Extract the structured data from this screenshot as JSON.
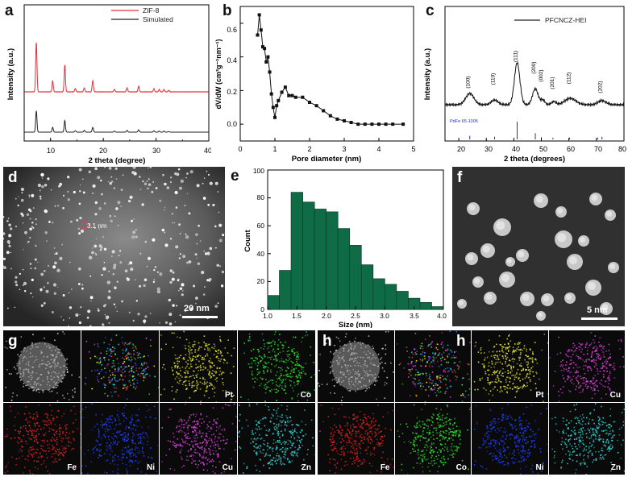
{
  "panel_labels": {
    "a": "a",
    "b": "b",
    "c": "c",
    "d": "d",
    "e": "e",
    "f": "f",
    "g": "g",
    "h": "h",
    "h2": "h"
  },
  "panel_a": {
    "legend": [
      "ZIF-8",
      "Simulated"
    ],
    "xlabel": "2 theta (degree)",
    "ylabel": "Intensity (a.u.)",
    "xticks": [
      "10",
      "20",
      "30",
      "40"
    ],
    "colors": {
      "zif8": "#e0303a",
      "simulated": "#222222"
    }
  },
  "panel_b": {
    "xlabel": "Pore diameter (nm)",
    "ylabel": "dV/dW (cm³g⁻¹nm⁻¹)",
    "xticks": [
      "0",
      "1",
      "2",
      "3",
      "4",
      "5"
    ],
    "yticks": [
      "0.0",
      "0.2",
      "0.4",
      "0.6"
    ]
  },
  "panel_c": {
    "legend": "PFCNCZ-HEI",
    "xlabel": "2 theta (degrees)",
    "ylabel": "Intensity (a.u.)",
    "xticks": [
      "20",
      "30",
      "40",
      "50",
      "60",
      "70",
      "80"
    ],
    "peaks": [
      "(100)",
      "(110)",
      "(111)",
      "(200)",
      "(002)",
      "(201)",
      "(112)",
      "(202)"
    ],
    "ref_label": "PdFe 65-1005",
    "ref_color": "#2030c0"
  },
  "panel_d": {
    "annotation": "3.1 nm",
    "scalebar": "20 nm"
  },
  "panel_e": {
    "xlabel": "Size (nm)",
    "ylabel": "Count",
    "xticks": [
      "1.0",
      "1.5",
      "2.0",
      "2.5",
      "3.0",
      "3.5",
      "4.0"
    ],
    "yticks": [
      "0",
      "20",
      "40",
      "60",
      "80",
      "100"
    ],
    "bar_color": "#0f6b45"
  },
  "panel_f": {
    "scalebar": "5 nm"
  },
  "panel_g": {
    "tiles": [
      "",
      "",
      "Pt",
      "Co",
      "Fe",
      "Ni",
      "Cu",
      "Zn"
    ]
  },
  "panel_h": {
    "tiles": [
      "",
      "",
      "Pt",
      "Cu",
      "Fe",
      "Co",
      "Ni",
      "Zn"
    ]
  },
  "chart_data": [
    {
      "type": "line",
      "panel": "a",
      "xlabel": "2 theta (degree)",
      "ylabel": "Intensity (a.u.)",
      "xlim": [
        5,
        40
      ],
      "series": [
        {
          "name": "ZIF-8",
          "peaks_x": [
            7.3,
            10.4,
            12.7,
            14.7,
            16.4,
            18.0,
            22.1,
            24.5,
            26.7,
            29.6,
            30.6,
            31.5,
            32.4
          ]
        },
        {
          "name": "Simulated",
          "peaks_x": [
            7.3,
            10.4,
            12.7,
            14.7,
            16.4,
            18.0,
            22.1,
            24.5,
            26.7,
            29.6,
            30.6,
            31.5,
            32.4
          ]
        }
      ]
    },
    {
      "type": "line",
      "panel": "b",
      "xlabel": "Pore diameter (nm)",
      "ylabel": "dV/dW (cm³g⁻¹nm⁻¹)",
      "xlim": [
        0,
        5
      ],
      "ylim": [
        -0.1,
        0.7
      ],
      "x": [
        0.5,
        0.55,
        0.6,
        0.65,
        0.7,
        0.75,
        0.8,
        0.85,
        0.9,
        0.95,
        1.0,
        1.05,
        1.1,
        1.2,
        1.3,
        1.4,
        1.5,
        1.6,
        1.8,
        2.0,
        2.2,
        2.4,
        2.6,
        2.8,
        3.0,
        3.2,
        3.4,
        3.6,
        3.8,
        4.0,
        4.2,
        4.4,
        4.7
      ],
      "y": [
        0.53,
        0.65,
        0.56,
        0.46,
        0.45,
        0.37,
        0.4,
        0.31,
        0.18,
        0.1,
        0.04,
        0.11,
        0.14,
        0.19,
        0.22,
        0.17,
        0.17,
        0.16,
        0.16,
        0.13,
        0.11,
        0.08,
        0.05,
        0.03,
        0.02,
        0.01,
        0.0,
        0.0,
        0.0,
        0.0,
        0.0,
        0.0,
        0.0
      ]
    },
    {
      "type": "line",
      "panel": "c",
      "xlabel": "2 theta (degrees)",
      "ylabel": "Intensity (a.u.)",
      "xlim": [
        15,
        80
      ],
      "series": [
        {
          "name": "PFCNCZ-HEI",
          "peaks_x": [
            24.0,
            33.0,
            41.2,
            47.8,
            50.5,
            54.5,
            60.5,
            72.0
          ]
        }
      ],
      "reference": {
        "name": "PdFe 65-1005",
        "x": [
          24.0,
          33.0,
          41.2,
          47.8,
          50.0,
          54.2,
          60.2,
          70.5,
          72.0
        ],
        "rel_height": [
          0.2,
          0.15,
          1.0,
          0.35,
          0.12,
          0.1,
          0.1,
          0.1,
          0.15
        ]
      }
    },
    {
      "type": "bar",
      "panel": "e",
      "xlabel": "Size (nm)",
      "ylabel": "Count",
      "xlim": [
        1.0,
        4.0
      ],
      "ylim": [
        0,
        100
      ],
      "bin_width": 0.2,
      "bin_start": [
        1.0,
        1.2,
        1.4,
        1.6,
        1.8,
        2.0,
        2.2,
        2.4,
        2.6,
        2.8,
        3.0,
        3.2,
        3.4,
        3.6,
        3.8
      ],
      "values": [
        10,
        28,
        84,
        77,
        72,
        70,
        58,
        46,
        32,
        22,
        18,
        13,
        8,
        5,
        2
      ]
    }
  ]
}
